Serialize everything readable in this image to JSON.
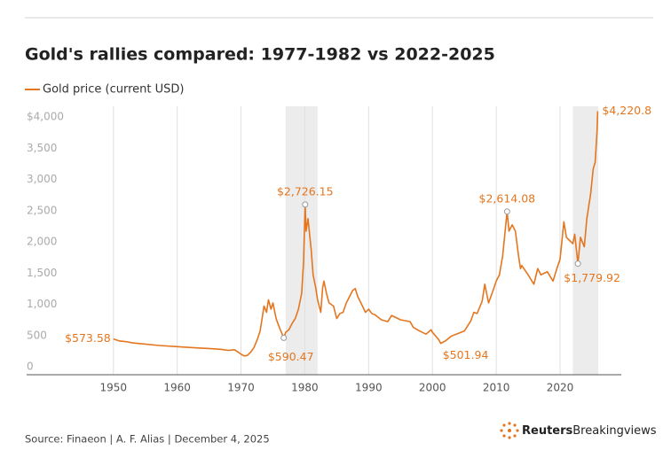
{
  "chart_data": {
    "type": "line",
    "title": "Gold's rallies compared: 1977-1982 vs 2022-2025",
    "source": "Source: Finaeon | A. F. Alias | December 4, 2025",
    "brand": "Reuters",
    "brand_sub": "Breakingviews",
    "xlim": [
      1936.4,
      2029.6
    ],
    "xticks": [
      1950,
      1960,
      1970,
      1980,
      1990,
      2000,
      2010,
      2020
    ],
    "ylim": [
      0,
      4300
    ],
    "yticks": [
      0,
      500,
      {
        "value": 1000,
        "label": "1,000"
      },
      {
        "value": 1500,
        "label": "1,500"
      },
      {
        "value": 2000,
        "label": "2,000"
      },
      {
        "value": 2500,
        "label": "2,500"
      },
      {
        "value": 3000,
        "label": "3,000"
      },
      {
        "value": 3500,
        "label": "3,500"
      },
      {
        "value": 4000,
        "label": "$4,000"
      }
    ],
    "grid": true,
    "highlight_ranges": [
      [
        1977,
        1982
      ],
      [
        2022,
        2026
      ]
    ],
    "x": [
      1950,
      1951,
      1952,
      1953,
      1955,
      1957,
      1960,
      1963,
      1965,
      1967,
      1968,
      1969,
      1970,
      1970.5,
      1971,
      1971.5,
      1972,
      1972.5,
      1973,
      1973.3,
      1973.6,
      1974,
      1974.3,
      1974.7,
      1975,
      1975.5,
      1976,
      1976.7,
      1977,
      1977.5,
      1978,
      1978.5,
      1979,
      1979.5,
      1979.8,
      1980.05,
      1980.2,
      1980.5,
      1980.8,
      1981,
      1981.3,
      1981.7,
      1982,
      1982.5,
      1982.8,
      1983,
      1983.4,
      1983.8,
      1984.5,
      1985,
      1985.5,
      1986,
      1986.5,
      1987,
      1987.5,
      1987.9,
      1988.3,
      1988.8,
      1989.5,
      1990,
      1990.5,
      1991,
      1992,
      1993,
      1993.6,
      1994,
      1995,
      1996,
      1996.5,
      1997,
      1998,
      1999,
      1999.8,
      2000,
      2001,
      2001.3,
      2002,
      2003,
      2004,
      2005,
      2006,
      2006.5,
      2007,
      2007.8,
      2008.2,
      2008.8,
      2009.5,
      2010,
      2010.5,
      2011,
      2011.3,
      2011.7,
      2012,
      2012.5,
      2013,
      2013.5,
      2013.8,
      2014,
      2015,
      2015.9,
      2016.5,
      2017,
      2018,
      2018.9,
      2019.5,
      2020,
      2020.6,
      2021,
      2021.5,
      2022,
      2022.3,
      2022.8,
      2023.2,
      2023.8,
      2024.2,
      2024.8,
      2025.2,
      2025.5,
      2025.8,
      2025.9
    ],
    "series": [
      {
        "name": "Gold price (current USD)",
        "color": "#e4761f",
        "values": [
          573.58,
          540,
          530,
          510,
          490,
          470,
          450,
          430,
          420,
          405,
          390,
          400,
          330,
          300,
          310,
          360,
          430,
          550,
          700,
          900,
          1100,
          1000,
          1200,
          1050,
          1150,
          900,
          760,
          590.47,
          680,
          720,
          820,
          900,
          1050,
          1300,
          1800,
          2726.15,
          2300,
          2500,
          2200,
          2000,
          1600,
          1400,
          1200,
          1000,
          1400,
          1500,
          1300,
          1150,
          1100,
          900,
          980,
          1000,
          1150,
          1250,
          1350,
          1380,
          1250,
          1150,
          1000,
          1050,
          980,
          960,
          880,
          850,
          950,
          930,
          880,
          860,
          850,
          760,
          700,
          650,
          720,
          680,
          560,
          501.94,
          540,
          620,
          660,
          700,
          860,
          1000,
          980,
          1180,
          1450,
          1150,
          1350,
          1500,
          1600,
          1900,
          2200,
          2614.08,
          2300,
          2400,
          2300,
          1900,
          1700,
          1750,
          1600,
          1450,
          1700,
          1600,
          1650,
          1500,
          1700,
          1850,
          2450,
          2200,
          2150,
          2100,
          2250,
          1779.92,
          2200,
          2050,
          2500,
          2900,
          3300,
          3400,
          3900,
          4220.8
        ]
      }
    ],
    "annotations": [
      {
        "x": 1950,
        "y": 573.58,
        "label": "$573.58",
        "marker": false
      },
      {
        "x": 1976.7,
        "y": 590.47,
        "label": "$590.47",
        "marker": true
      },
      {
        "x": 1980.05,
        "y": 2726.15,
        "label": "$2,726.15",
        "marker": true
      },
      {
        "x": 2001.3,
        "y": 501.94,
        "label": "$501.94",
        "marker": false
      },
      {
        "x": 2011.7,
        "y": 2614.08,
        "label": "$2,614.08",
        "marker": true
      },
      {
        "x": 2022.8,
        "y": 1779.92,
        "label": "$1,779.92",
        "marker": true
      },
      {
        "x": 2025.9,
        "y": 4220.8,
        "label": "$4,220.8",
        "marker": false
      }
    ]
  }
}
